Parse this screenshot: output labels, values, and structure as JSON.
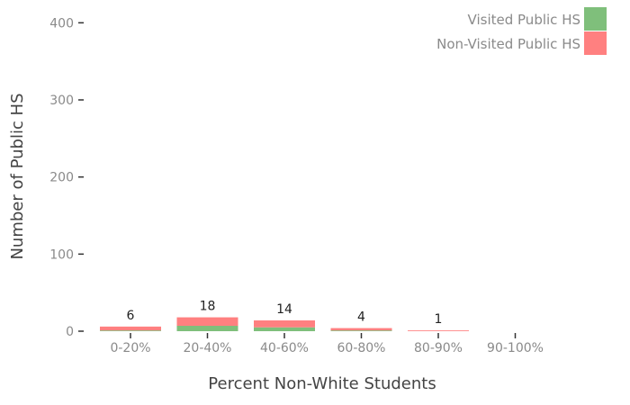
{
  "chart_data": {
    "type": "bar",
    "stacked": true,
    "title": "",
    "xlabel": "Percent Non-White Students",
    "ylabel": "Number of Public HS",
    "categories": [
      "0-20%",
      "20-40%",
      "40-60%",
      "60-80%",
      "80-90%",
      "90-100%"
    ],
    "series": [
      {
        "name": "Visited Public HS",
        "color": "#7fbf7b",
        "values": [
          1,
          7,
          5,
          1,
          0,
          0
        ]
      },
      {
        "name": "Non-Visited Public HS",
        "color": "#ff8080",
        "values": [
          5,
          11,
          9,
          3,
          1,
          0
        ]
      }
    ],
    "totals": [
      6,
      18,
      14,
      4,
      1,
      null
    ],
    "ylim": [
      0,
      420
    ],
    "yticks": [
      0,
      100,
      200,
      300,
      400
    ],
    "grid": false,
    "legend_position": "top-right"
  }
}
